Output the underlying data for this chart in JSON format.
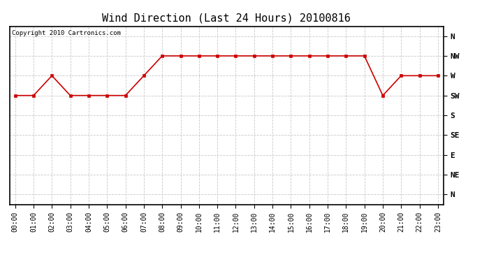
{
  "title": "Wind Direction (Last 24 Hours) 20100816",
  "copyright_text": "Copyright 2010 Cartronics.com",
  "hours": [
    0,
    1,
    2,
    3,
    4,
    5,
    6,
    7,
    8,
    9,
    10,
    11,
    12,
    13,
    14,
    15,
    16,
    17,
    18,
    19,
    20,
    21,
    22,
    23
  ],
  "hour_labels": [
    "00:00",
    "01:00",
    "02:00",
    "03:00",
    "04:00",
    "05:00",
    "06:00",
    "07:00",
    "08:00",
    "09:00",
    "10:00",
    "11:00",
    "12:00",
    "13:00",
    "14:00",
    "15:00",
    "16:00",
    "17:00",
    "18:00",
    "19:00",
    "20:00",
    "21:00",
    "22:00",
    "23:00"
  ],
  "wind_values": [
    5,
    5,
    6,
    5,
    5,
    5,
    5,
    6,
    7,
    7,
    7,
    7,
    7,
    7,
    7,
    7,
    7,
    7,
    7,
    7,
    5,
    6,
    6,
    6
  ],
  "ytick_positions": [
    0,
    1,
    2,
    3,
    4,
    5,
    6,
    7,
    8
  ],
  "ytick_labels": [
    "N",
    "NE",
    "E",
    "SE",
    "S",
    "SW",
    "W",
    "NW",
    "N"
  ],
  "line_color": "#cc0000",
  "marker": "s",
  "marker_size": 2.5,
  "background_color": "#ffffff",
  "grid_color": "#c8c8c8",
  "title_fontsize": 11,
  "tick_fontsize": 7,
  "copyright_fontsize": 6.5
}
